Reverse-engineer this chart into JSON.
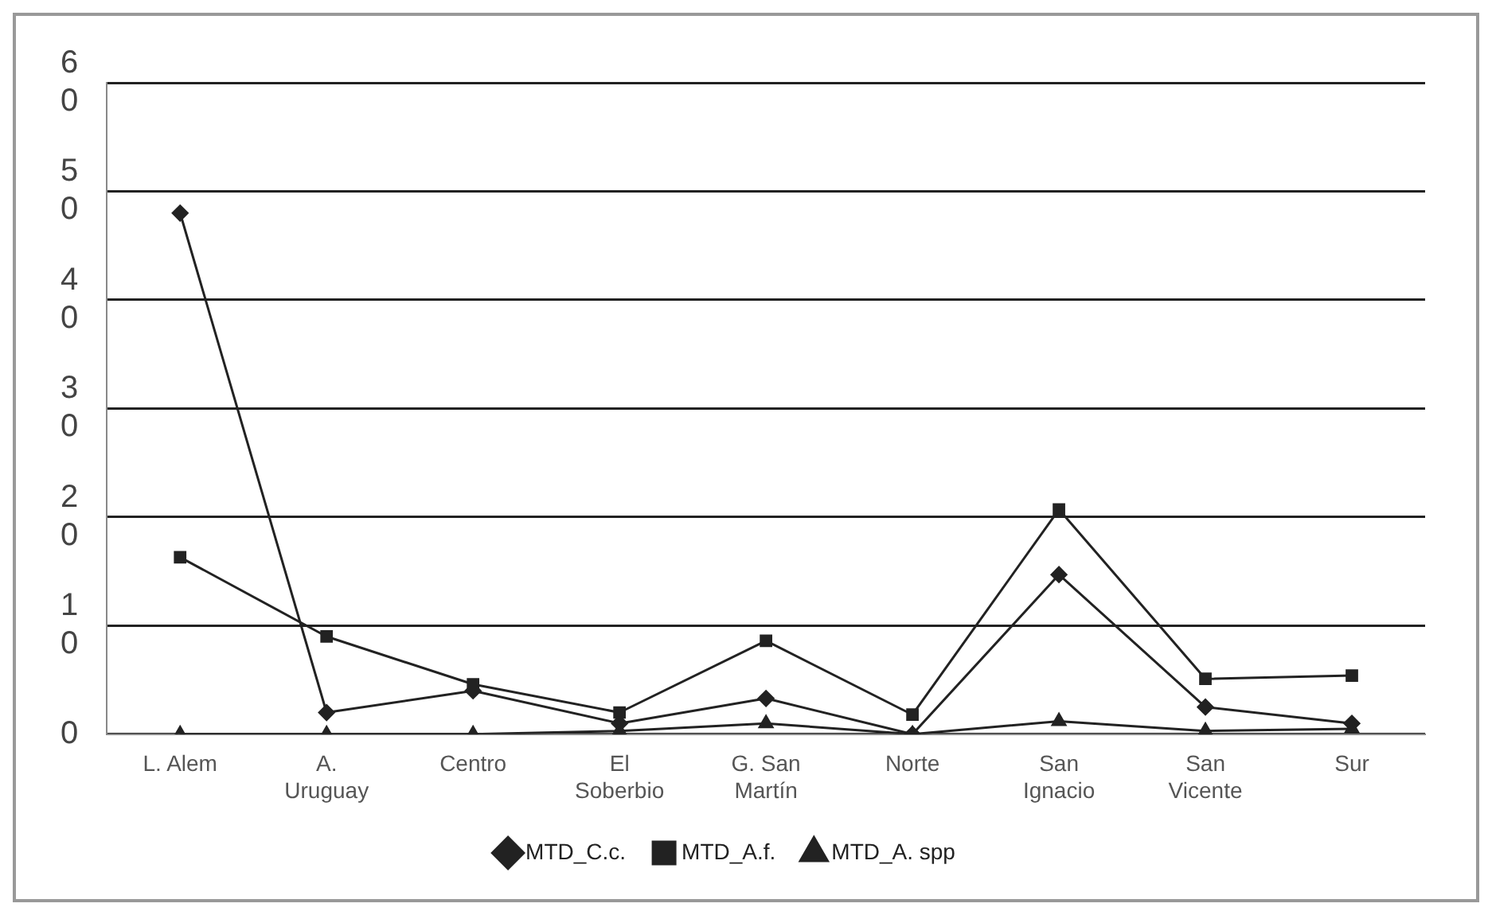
{
  "chart_data": {
    "type": "line",
    "categories": [
      "L. Alem",
      "A. Uruguay",
      "Centro",
      "El Soberbio",
      "G. San Martín",
      "Norte",
      "San Ignacio",
      "San Vicente",
      "Sur"
    ],
    "series": [
      {
        "name": "MTD_C.c.",
        "color": "#222222",
        "marker": "diamond",
        "values": [
          48,
          2,
          4,
          1,
          3.3,
          0,
          14.7,
          2.5,
          1
        ]
      },
      {
        "name": "MTD_A.f.",
        "color": "#222222",
        "marker": "square",
        "values": [
          16.3,
          9,
          4.6,
          2,
          8.6,
          1.8,
          20.7,
          5.1,
          5.4
        ]
      },
      {
        "name": "MTD_A. spp",
        "color": "#222222",
        "marker": "triangle",
        "values": [
          0,
          0,
          0,
          0.3,
          1,
          0,
          1.2,
          0.3,
          0.5
        ]
      }
    ],
    "ylim": [
      0,
      60
    ],
    "yticks": [
      0,
      10,
      20,
      30,
      40,
      50,
      60
    ],
    "grid": "y",
    "legend": "bottom",
    "line_style": "solid"
  }
}
